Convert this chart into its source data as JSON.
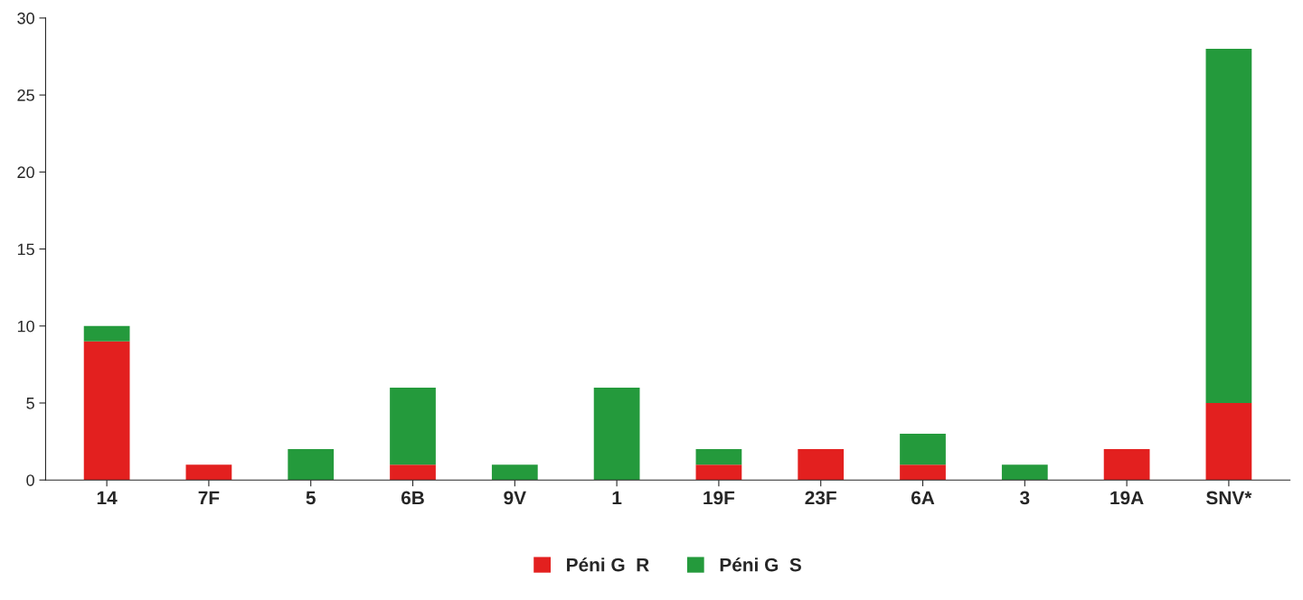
{
  "chart_data": {
    "type": "bar",
    "stacked": true,
    "categories": [
      "14",
      "7F",
      "5",
      "6B",
      "9V",
      "1",
      "19F",
      "23F",
      "6A",
      "3",
      "19A",
      "SNV*"
    ],
    "series": [
      {
        "name": "Péni G  R",
        "color": "#e3201f",
        "values": [
          9,
          1,
          0,
          1,
          0,
          0,
          1,
          2,
          1,
          0,
          2,
          5
        ]
      },
      {
        "name": "Péni G  S",
        "color": "#249a3c",
        "values": [
          1,
          0,
          2,
          5,
          1,
          6,
          1,
          0,
          2,
          1,
          0,
          23
        ]
      }
    ],
    "ylim": [
      0,
      30
    ],
    "yticks": [
      0,
      5,
      10,
      15,
      20,
      25,
      30
    ],
    "grid": false,
    "legend": "bottom"
  }
}
